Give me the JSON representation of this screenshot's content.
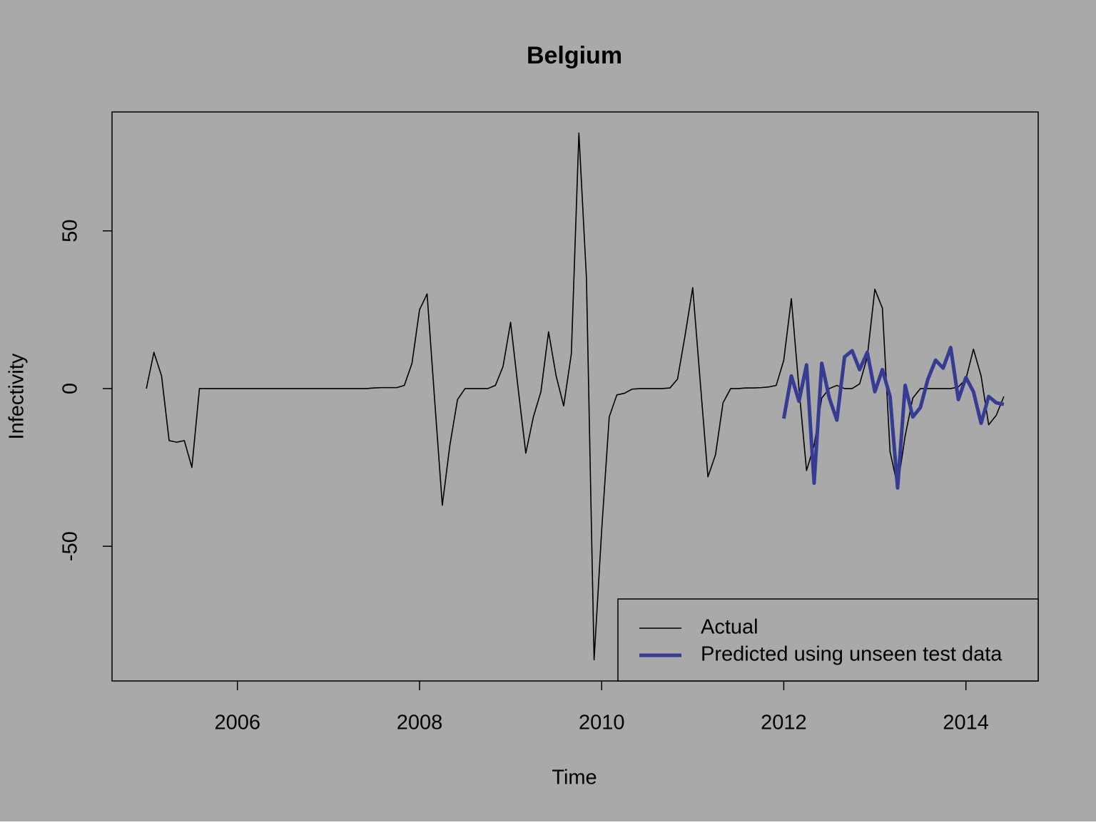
{
  "chart_data": {
    "type": "line",
    "title": "Belgium",
    "x_label": "Time",
    "y_label": "Infectivity",
    "x": [
      2005,
      2005.083,
      2005.167,
      2005.25,
      2005.333,
      2005.417,
      2005.5,
      2005.583,
      2005.667,
      2005.75,
      2005.833,
      2005.917,
      2006,
      2006.083,
      2006.167,
      2006.25,
      2006.333,
      2006.417,
      2006.5,
      2006.583,
      2006.667,
      2006.75,
      2006.833,
      2006.917,
      2007,
      2007.083,
      2007.167,
      2007.25,
      2007.333,
      2007.417,
      2007.5,
      2007.583,
      2007.667,
      2007.75,
      2007.833,
      2007.917,
      2008,
      2008.083,
      2008.167,
      2008.25,
      2008.333,
      2008.417,
      2008.5,
      2008.583,
      2008.667,
      2008.75,
      2008.833,
      2008.917,
      2009,
      2009.083,
      2009.167,
      2009.25,
      2009.333,
      2009.417,
      2009.5,
      2009.583,
      2009.667,
      2009.75,
      2009.833,
      2009.917,
      2010,
      2010.083,
      2010.167,
      2010.25,
      2010.333,
      2010.417,
      2010.5,
      2010.583,
      2010.667,
      2010.75,
      2010.833,
      2010.917,
      2011,
      2011.083,
      2011.167,
      2011.25,
      2011.333,
      2011.417,
      2011.5,
      2011.583,
      2011.667,
      2011.75,
      2011.833,
      2011.917,
      2012,
      2012.083,
      2012.167,
      2012.25,
      2012.333,
      2012.417,
      2012.5,
      2012.583,
      2012.667,
      2012.75,
      2012.833,
      2012.917,
      2013,
      2013.083,
      2013.167,
      2013.25,
      2013.333,
      2013.417,
      2013.5,
      2013.583,
      2013.667,
      2013.75,
      2013.833,
      2013.917,
      2014,
      2014.083,
      2014.167,
      2014.25,
      2014.333,
      2014.417
    ],
    "series": [
      {
        "name": "Actual",
        "color": "#000000",
        "values": [
          0,
          11.5,
          4,
          -16.5,
          -17,
          -16.5,
          -25,
          0,
          0,
          0,
          0,
          0,
          0,
          0,
          0,
          0,
          0,
          0,
          0,
          0,
          0,
          0,
          0,
          0,
          0,
          0,
          0,
          0,
          0,
          0,
          0.2,
          0.3,
          0.3,
          0.3,
          1,
          8,
          25,
          30,
          -4,
          -37,
          -18,
          -3.5,
          0,
          0,
          0,
          0,
          1,
          7,
          21,
          0,
          -20.5,
          -9,
          -1,
          18,
          4,
          -5.5,
          11,
          81,
          35,
          -86,
          -45,
          -9,
          -2,
          -1.5,
          -0.2,
          0,
          0,
          0,
          0,
          0.2,
          3,
          17,
          32,
          2,
          -28,
          -21,
          -4.5,
          0,
          0,
          0.2,
          0.2,
          0.3,
          0.5,
          1,
          9,
          28.5,
          0,
          -26,
          -18,
          -3,
          0,
          1,
          0,
          0,
          1.5,
          10,
          31.5,
          25.5,
          -20,
          -31,
          -15,
          -3,
          0,
          0,
          0,
          0,
          0,
          0.5,
          3,
          12.5,
          4,
          -11.5,
          -8.5,
          -2.5
        ]
      },
      {
        "name": "Predicted using unseen test data",
        "color": "#363c94",
        "values": [
          null,
          null,
          null,
          null,
          null,
          null,
          null,
          null,
          null,
          null,
          null,
          null,
          null,
          null,
          null,
          null,
          null,
          null,
          null,
          null,
          null,
          null,
          null,
          null,
          null,
          null,
          null,
          null,
          null,
          null,
          null,
          null,
          null,
          null,
          null,
          null,
          null,
          null,
          null,
          null,
          null,
          null,
          null,
          null,
          null,
          null,
          null,
          null,
          null,
          null,
          null,
          null,
          null,
          null,
          null,
          null,
          null,
          null,
          null,
          null,
          null,
          null,
          null,
          null,
          null,
          null,
          null,
          null,
          null,
          null,
          null,
          null,
          null,
          null,
          null,
          null,
          null,
          null,
          null,
          null,
          null,
          null,
          null,
          null,
          -9.5,
          4,
          -4,
          7.5,
          -30,
          8,
          -3,
          -10,
          10,
          12,
          6,
          11.5,
          -1,
          6,
          -2.5,
          -31.5,
          1,
          -9,
          -6,
          3,
          9,
          6.5,
          13,
          -3.5,
          3.5,
          -1,
          -11,
          -2.5,
          -4.5,
          -5
        ]
      }
    ],
    "xlim": [
      2004.623,
      2014.794
    ],
    "xticks": [
      2006,
      2008,
      2010,
      2012,
      2014
    ],
    "ylim": [
      -92.7,
      87.7
    ],
    "yticks": [
      -50,
      0,
      50
    ],
    "legend": "bottomright",
    "background": "#a9a9a9"
  }
}
